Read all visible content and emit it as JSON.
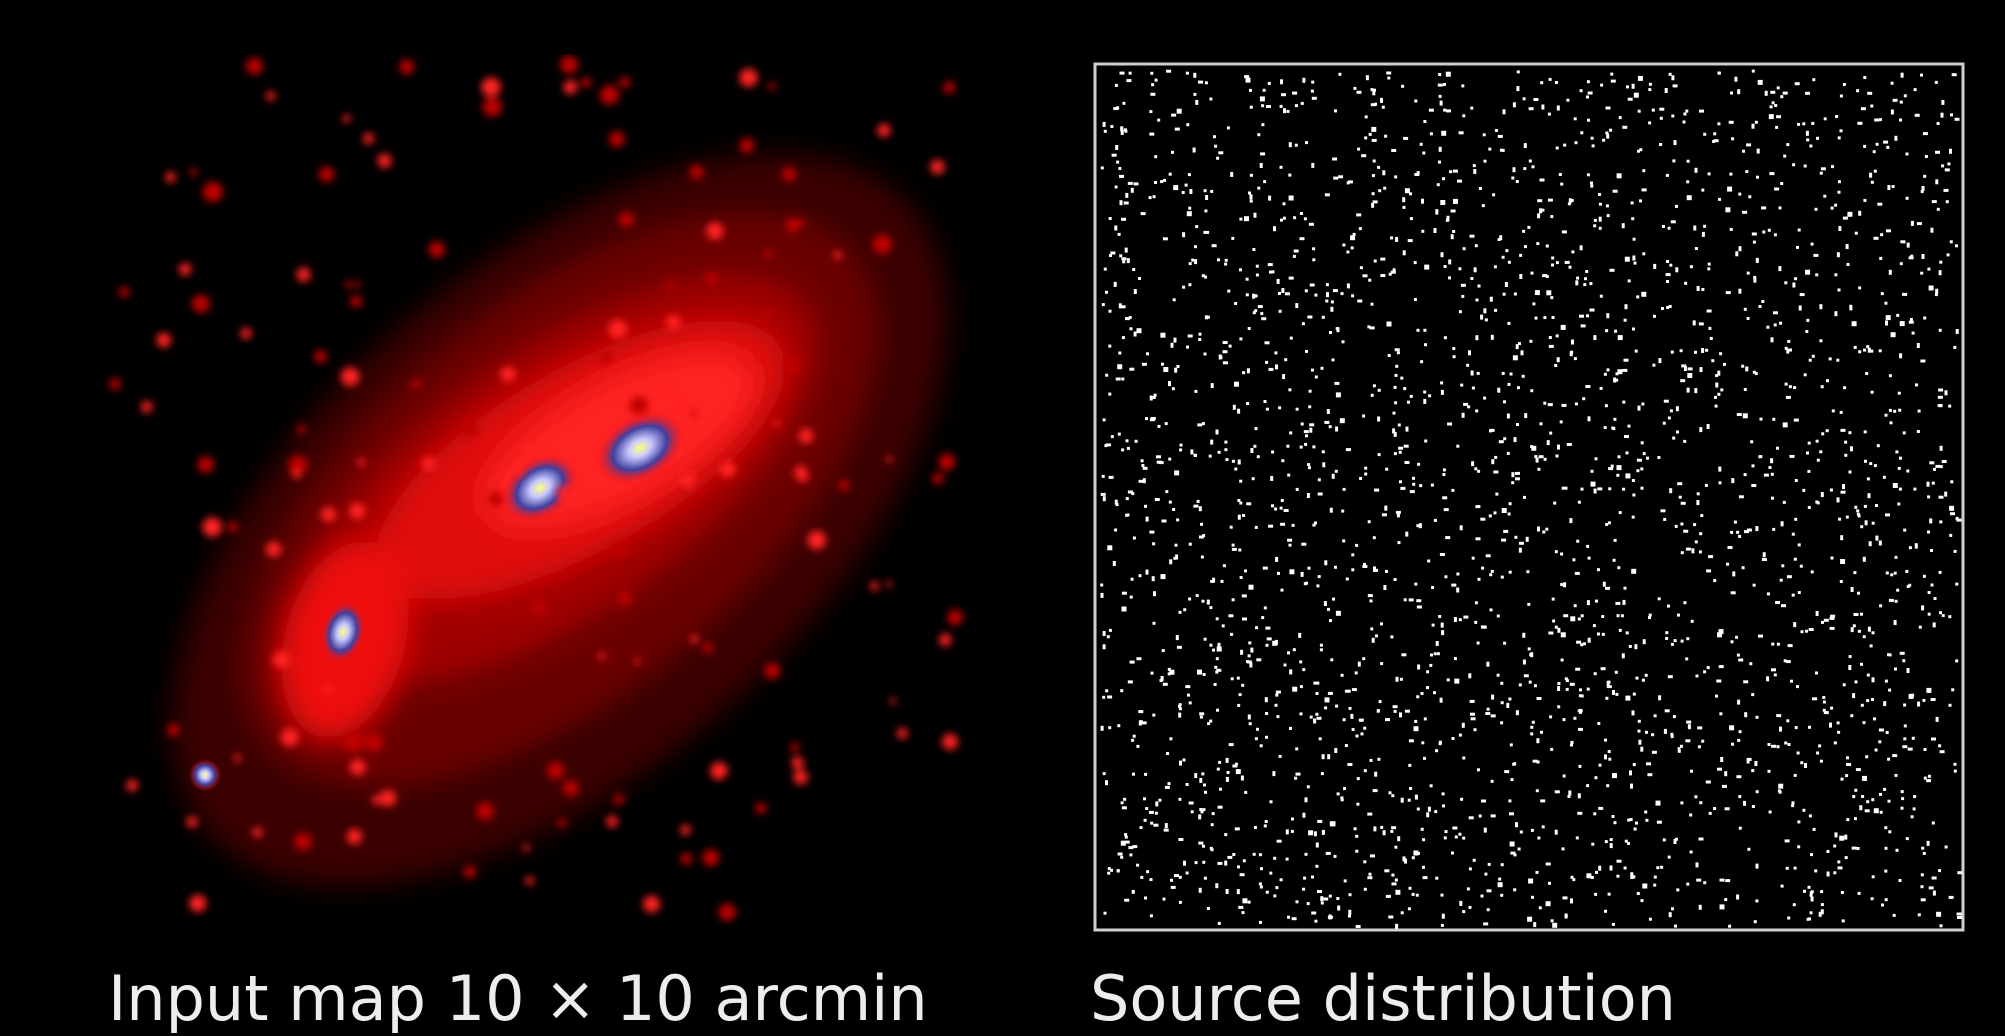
{
  "figure": {
    "left_caption": "Input map 10 × 10 arcmin",
    "right_caption": "Source distribution"
  }
}
